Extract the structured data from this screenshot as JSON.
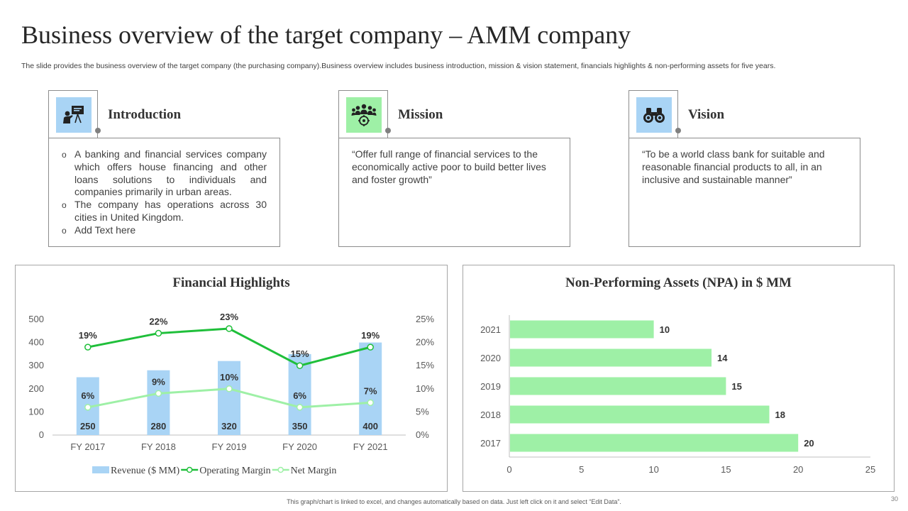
{
  "title": "Business overview of the target company – AMM company",
  "subtitle": "The slide provides the business overview of the target company (the purchasing company).Business overview includes business introduction, mission & vision statement, financials highlights & non-performing assets for five years.",
  "cards": {
    "introduction": {
      "heading": "Introduction",
      "icon": "presentation-icon",
      "icon_bg": "#a9d4f5",
      "bullets": [
        "A banking and financial services company which offers house financing and other loans solutions to individuals and companies primarily in urban areas.",
        "The company has operations across 30 cities in United Kingdom.",
        "Add Text here"
      ]
    },
    "mission": {
      "heading": "Mission",
      "icon": "team-target-icon",
      "icon_bg": "#9ef0a6",
      "text": "“Offer full range of financial services to the economically active poor to build better lives and foster growth”"
    },
    "vision": {
      "heading": "Vision",
      "icon": "binoculars-icon",
      "icon_bg": "#a9d4f5",
      "text": "“To be a world class bank for suitable and reasonable financial products to all, in an inclusive and sustainable manner”"
    }
  },
  "chart_data": [
    {
      "type": "bar",
      "title": "Financial Highlights",
      "categories": [
        "FY 2017",
        "FY 2018",
        "FY 2019",
        "FY 2020",
        "FY 2021"
      ],
      "y_ticks": [
        "0",
        "100",
        "200",
        "300",
        "400",
        "500"
      ],
      "y2_ticks": [
        "0%",
        "5%",
        "10%",
        "15%",
        "20%",
        "25%"
      ],
      "ylim": [
        0,
        500
      ],
      "y2lim": [
        0,
        25
      ],
      "series": [
        {
          "name": "Revenue ($ MM)",
          "kind": "bar",
          "axis": "left",
          "color": "#a9d4f5",
          "values": [
            250,
            280,
            320,
            350,
            400
          ],
          "labels": [
            "250",
            "280",
            "320",
            "350",
            "400"
          ]
        },
        {
          "name": "Operating Margin",
          "kind": "line",
          "axis": "right",
          "color": "#1fbf3a",
          "values": [
            19,
            22,
            23,
            15,
            19
          ],
          "labels": [
            "19%",
            "22%",
            "23%",
            "15%",
            "19%"
          ]
        },
        {
          "name": "Net Margin",
          "kind": "line",
          "axis": "right",
          "color": "#9ef0a6",
          "values": [
            6,
            9,
            10,
            6,
            7
          ],
          "labels": [
            "6%",
            "9%",
            "10%",
            "6%",
            "7%"
          ]
        }
      ],
      "legend": "bottom"
    },
    {
      "type": "bar",
      "orientation": "horizontal",
      "title": "Non-Performing Assets (NPA) in $ MM",
      "categories": [
        "2021",
        "2020",
        "2019",
        "2018",
        "2017"
      ],
      "values": [
        10,
        14,
        15,
        18,
        20
      ],
      "x_ticks": [
        "0",
        "5",
        "10",
        "15",
        "20",
        "25"
      ],
      "xlim": [
        0,
        25
      ],
      "color": "#9ef0a6"
    }
  ],
  "footer": "This graph/chart is linked to excel, and changes automatically based on data. Just left click on it and select “Edit Data”.",
  "page_number": "30"
}
